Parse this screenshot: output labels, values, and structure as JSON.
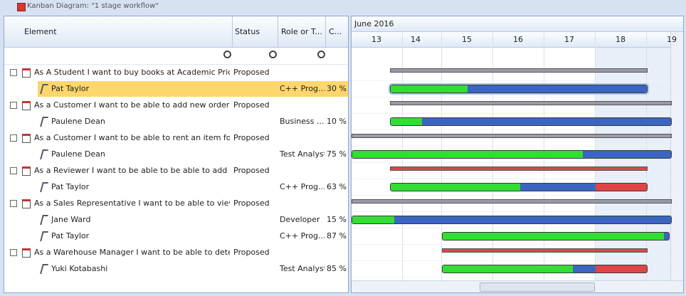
{
  "window_title": "Kanban Diagram: \"1 stage workflow\"",
  "columns": [
    "Element",
    "Status",
    "Role or T...",
    "C..."
  ],
  "timeline": {
    "month": "June 2016",
    "days": [
      13,
      14,
      15,
      16,
      17,
      18,
      19
    ]
  },
  "items": [
    {
      "element": "As A Student I want to buy books at Academic Prices",
      "status": "Proposed",
      "children": [
        {
          "name": "Pat Taylor",
          "role": "C++ Prog...",
          "complete": "30 %"
        }
      ]
    },
    {
      "element": "As a Customer I want to be able to add new orders ...",
      "status": "Proposed",
      "children": [
        {
          "name": "Paulene Dean",
          "role": "Business ...",
          "complete": "10 %"
        }
      ]
    },
    {
      "element": "As a Customer I want to be able to rent an item for ...",
      "status": "Proposed",
      "children": [
        {
          "name": "Paulene Dean",
          "role": "Test Analyst",
          "complete": "75 %"
        }
      ]
    },
    {
      "element": "As a Reviewer I want to be able to be able to add a...",
      "status": "Proposed",
      "children": [
        {
          "name": "Pat Taylor",
          "role": "C++ Prog...",
          "complete": "63 %"
        }
      ]
    },
    {
      "element": "As a Sales Representative I want to be able to view ...",
      "status": "Proposed",
      "children": [
        {
          "name": "Jane Ward",
          "role": "Developer",
          "complete": "15 %"
        },
        {
          "name": "Pat Taylor",
          "role": "C++ Prog...",
          "complete": "87 %"
        }
      ]
    },
    {
      "element": "As a Warehouse Manager I want to be able to dete...",
      "status": "Proposed",
      "children": [
        {
          "name": "Yuki Kotabashi",
          "role": "Test Analyst",
          "complete": "85 %"
        }
      ]
    }
  ]
}
